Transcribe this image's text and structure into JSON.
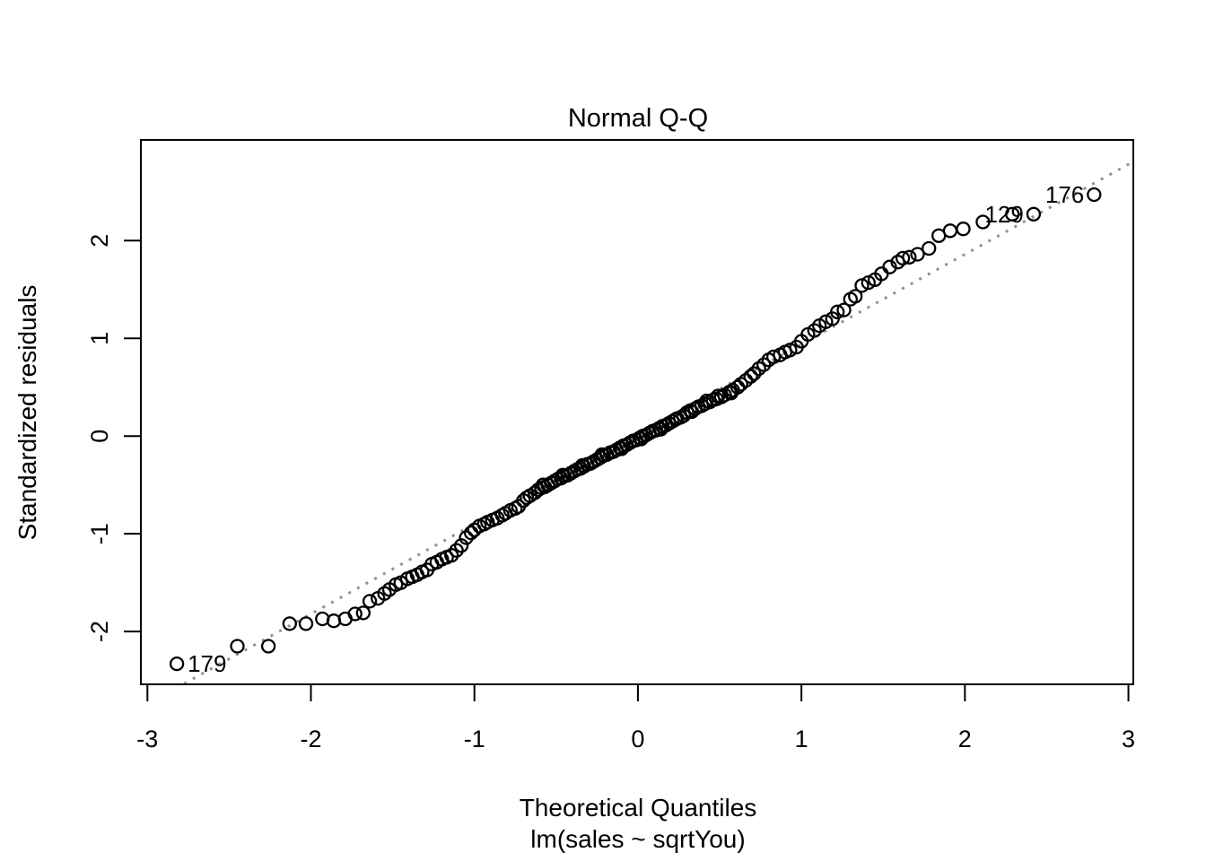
{
  "figure": {
    "title": "Normal Q-Q",
    "x_axis_label": "Theoretical Quantiles",
    "x_axis_sublabel": "lm(sales ~ sqrtYou)",
    "y_axis_label": "Standardized residuals"
  },
  "colors": {
    "foreground": "#000000",
    "background": "#ffffff",
    "reference_line": "#909090"
  },
  "chart_data": {
    "type": "scatter",
    "title": "Normal Q-Q",
    "xlabel": "Theoretical Quantiles",
    "xlabel_line2": "lm(sales ~ sqrtYou)",
    "ylabel": "Standardized residuals",
    "x_ticks": [
      -3,
      -2,
      -1,
      0,
      1,
      2,
      3
    ],
    "y_ticks": [
      -2,
      -1,
      0,
      1,
      2
    ],
    "xlim": [
      -3.04,
      3.03
    ],
    "ylim": [
      -2.54,
      3.03
    ],
    "grid": false,
    "legend": null,
    "marker": "open-circle",
    "reference_line": {
      "type": "qqline",
      "slope": 0.92,
      "intercept": 0.02,
      "style": "dotted",
      "color": "#909090"
    },
    "points": [
      [
        -2.82,
        -2.33
      ],
      [
        -2.45,
        -2.15
      ],
      [
        -2.26,
        -2.15
      ],
      [
        -2.13,
        -1.92
      ],
      [
        -2.03,
        -1.92
      ],
      [
        -1.93,
        -1.87
      ],
      [
        -1.86,
        -1.89
      ],
      [
        -1.79,
        -1.87
      ],
      [
        -1.73,
        -1.82
      ],
      [
        -1.68,
        -1.81
      ],
      [
        -1.64,
        -1.69
      ],
      [
        -1.59,
        -1.66
      ],
      [
        -1.55,
        -1.61
      ],
      [
        -1.52,
        -1.57
      ],
      [
        -1.48,
        -1.52
      ],
      [
        -1.45,
        -1.5
      ],
      [
        -1.41,
        -1.46
      ],
      [
        -1.38,
        -1.44
      ],
      [
        -1.35,
        -1.42
      ],
      [
        -1.32,
        -1.39
      ],
      [
        -1.29,
        -1.37
      ],
      [
        -1.26,
        -1.31
      ],
      [
        -1.23,
        -1.29
      ],
      [
        -1.2,
        -1.26
      ],
      [
        -1.17,
        -1.24
      ],
      [
        -1.14,
        -1.22
      ],
      [
        -1.11,
        -1.17
      ],
      [
        -1.08,
        -1.12
      ],
      [
        -1.05,
        -1.04
      ],
      [
        -1.02,
        -0.99
      ],
      [
        -1.0,
        -0.96
      ],
      [
        -0.97,
        -0.92
      ],
      [
        -0.94,
        -0.9
      ],
      [
        -0.92,
        -0.88
      ],
      [
        -0.89,
        -0.86
      ],
      [
        -0.86,
        -0.84
      ],
      [
        -0.83,
        -0.81
      ],
      [
        -0.81,
        -0.79
      ],
      [
        -0.78,
        -0.76
      ],
      [
        -0.75,
        -0.74
      ],
      [
        -0.73,
        -0.72
      ],
      [
        -0.7,
        -0.66
      ],
      [
        -0.68,
        -0.63
      ],
      [
        -0.66,
        -0.61
      ],
      [
        -0.63,
        -0.58
      ],
      [
        -0.61,
        -0.55
      ],
      [
        -0.59,
        -0.53
      ],
      [
        -0.57,
        -0.52
      ],
      [
        -0.55,
        -0.5
      ],
      [
        -0.53,
        -0.48
      ],
      [
        -0.51,
        -0.46
      ],
      [
        -0.49,
        -0.44
      ],
      [
        -0.47,
        -0.43
      ],
      [
        -0.45,
        -0.41
      ],
      [
        -0.43,
        -0.4
      ],
      [
        -0.41,
        -0.38
      ],
      [
        -0.39,
        -0.36
      ],
      [
        -0.37,
        -0.34
      ],
      [
        -0.35,
        -0.33
      ],
      [
        -0.33,
        -0.31
      ],
      [
        -0.31,
        -0.29
      ],
      [
        -0.29,
        -0.28
      ],
      [
        -0.27,
        -0.26
      ],
      [
        -0.25,
        -0.24
      ],
      [
        -0.23,
        -0.22
      ],
      [
        -0.21,
        -0.2
      ],
      [
        -0.19,
        -0.19
      ],
      [
        -0.17,
        -0.17
      ],
      [
        -0.15,
        -0.16
      ],
      [
        -0.13,
        -0.14
      ],
      [
        -0.11,
        -0.12
      ],
      [
        -0.09,
        -0.1
      ],
      [
        -0.07,
        -0.09
      ],
      [
        -0.05,
        -0.07
      ],
      [
        -0.03,
        -0.05
      ],
      [
        -0.01,
        -0.04
      ],
      [
        0.01,
        -0.02
      ],
      [
        0.03,
        0.0
      ],
      [
        0.05,
        0.01
      ],
      [
        0.07,
        0.03
      ],
      [
        0.09,
        0.05
      ],
      [
        0.11,
        0.06
      ],
      [
        0.13,
        0.08
      ],
      [
        0.15,
        0.1
      ],
      [
        0.17,
        0.11
      ],
      [
        0.19,
        0.13
      ],
      [
        0.21,
        0.15
      ],
      [
        0.23,
        0.17
      ],
      [
        0.26,
        0.19
      ],
      [
        0.28,
        0.21
      ],
      [
        0.3,
        0.24
      ],
      [
        0.32,
        0.26
      ],
      [
        0.35,
        0.28
      ],
      [
        0.37,
        0.3
      ],
      [
        0.39,
        0.31
      ],
      [
        0.41,
        0.33
      ],
      [
        0.44,
        0.35
      ],
      [
        0.46,
        0.37
      ],
      [
        0.48,
        0.38
      ],
      [
        0.51,
        0.4
      ],
      [
        0.53,
        0.42
      ],
      [
        0.56,
        0.45
      ],
      [
        0.58,
        0.47
      ],
      [
        0.61,
        0.5
      ],
      [
        0.63,
        0.53
      ],
      [
        0.66,
        0.57
      ],
      [
        0.69,
        0.61
      ],
      [
        0.71,
        0.64
      ],
      [
        0.74,
        0.69
      ],
      [
        0.77,
        0.73
      ],
      [
        0.8,
        0.78
      ],
      [
        0.83,
        0.81
      ],
      [
        0.87,
        0.83
      ],
      [
        0.9,
        0.86
      ],
      [
        0.93,
        0.88
      ],
      [
        0.97,
        0.91
      ],
      [
        1.0,
        0.97
      ],
      [
        1.04,
        1.04
      ],
      [
        1.08,
        1.08
      ],
      [
        1.11,
        1.13
      ],
      [
        1.15,
        1.17
      ],
      [
        1.19,
        1.2
      ],
      [
        1.22,
        1.27
      ],
      [
        1.26,
        1.29
      ],
      [
        1.3,
        1.4
      ],
      [
        1.33,
        1.43
      ],
      [
        1.37,
        1.54
      ],
      [
        1.41,
        1.57
      ],
      [
        1.45,
        1.6
      ],
      [
        1.49,
        1.66
      ],
      [
        1.54,
        1.73
      ],
      [
        1.59,
        1.78
      ],
      [
        1.62,
        1.82
      ],
      [
        1.66,
        1.83
      ],
      [
        1.71,
        1.86
      ],
      [
        1.78,
        1.92
      ],
      [
        1.84,
        2.05
      ],
      [
        1.91,
        2.1
      ],
      [
        1.99,
        2.12
      ],
      [
        2.11,
        2.19
      ],
      [
        2.29,
        2.27
      ],
      [
        2.42,
        2.27
      ],
      [
        2.79,
        2.47
      ],
      [
        -0.58,
        -0.5
      ],
      [
        -0.46,
        -0.4
      ],
      [
        -0.34,
        -0.3
      ],
      [
        -0.22,
        -0.19
      ],
      [
        -0.1,
        -0.13
      ],
      [
        0.02,
        -0.03
      ],
      [
        0.14,
        0.07
      ],
      [
        0.24,
        0.18
      ],
      [
        0.33,
        0.25
      ],
      [
        0.42,
        0.36
      ],
      [
        0.49,
        0.41
      ],
      [
        0.57,
        0.44
      ]
    ],
    "labeled_points": [
      {
        "label": "179",
        "x": -2.82,
        "y": -2.33,
        "side": "right"
      },
      {
        "label": "129",
        "x": 2.42,
        "y": 2.27,
        "side": "left"
      },
      {
        "label": "176",
        "x": 2.79,
        "y": 2.47,
        "side": "left"
      }
    ]
  }
}
